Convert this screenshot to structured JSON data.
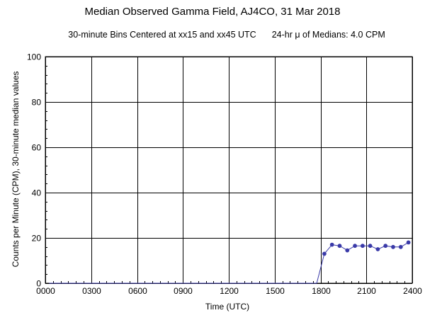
{
  "chart_data": {
    "type": "line",
    "title": "Median Observed Gamma Field, AJ4CO, 31 Mar 2018",
    "subtitle_left": "30-minute Bins Centered at xx15 and xx45 UTC",
    "subtitle_right": "24-hr μ of Medians: 4.0 CPM",
    "xlabel": "Time (UTC)",
    "ylabel": "Counts per Minute (CPM), 30-minute median values",
    "xlim": [
      0,
      24
    ],
    "ylim": [
      0,
      100
    ],
    "x_ticks": [
      0,
      3,
      6,
      9,
      12,
      15,
      18,
      21,
      24
    ],
    "x_tick_labels": [
      "0000",
      "0300",
      "0600",
      "0900",
      "1200",
      "1500",
      "1800",
      "2100",
      "2400"
    ],
    "y_ticks": [
      0,
      20,
      40,
      60,
      80,
      100
    ],
    "y_tick_labels": [
      "0",
      "20",
      "40",
      "60",
      "80",
      "100"
    ],
    "grid": true,
    "x": [
      0.25,
      0.75,
      1.25,
      1.75,
      2.25,
      2.75,
      3.25,
      3.75,
      4.25,
      4.75,
      5.25,
      5.75,
      6.25,
      6.75,
      7.25,
      7.75,
      8.25,
      8.75,
      9.25,
      9.75,
      10.25,
      10.75,
      11.25,
      11.75,
      12.25,
      12.75,
      13.25,
      13.75,
      14.25,
      14.75,
      15.25,
      15.75,
      16.25,
      16.75,
      17.25,
      17.75,
      18.25,
      18.75,
      19.25,
      19.75,
      20.25,
      20.75,
      21.25,
      21.75,
      22.25,
      22.75,
      23.25,
      23.75
    ],
    "series": [
      {
        "color": "#3a3aa8",
        "values": [
          0,
          0,
          0,
          0,
          0,
          0,
          0,
          0,
          0,
          0,
          0,
          0,
          0,
          0,
          0,
          0,
          0,
          0,
          0,
          0,
          0,
          0,
          0,
          0,
          0,
          0,
          0,
          0,
          0,
          0,
          0,
          0,
          0,
          0,
          0,
          0,
          13,
          17,
          16.5,
          14.5,
          16.5,
          16.5,
          16.5,
          15,
          16.5,
          16,
          16,
          18
        ]
      }
    ]
  }
}
